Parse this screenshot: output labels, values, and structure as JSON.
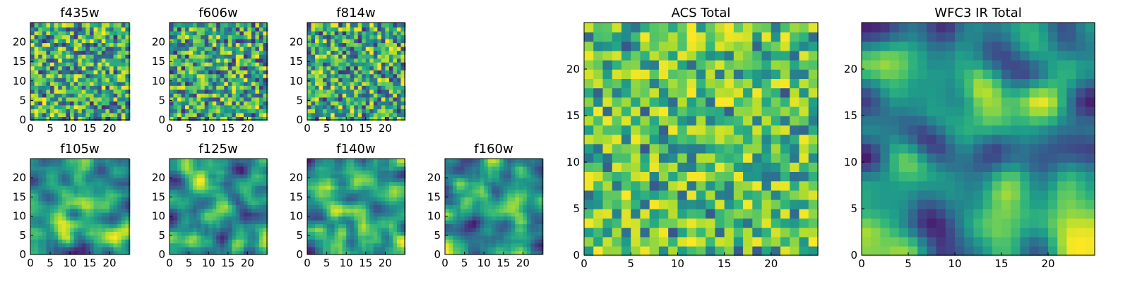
{
  "chart_data": [
    {
      "type": "heatmap",
      "title": "f435w",
      "grid_size": 25,
      "xlim": [
        0,
        25
      ],
      "ylim": [
        0,
        25
      ],
      "xticks": [
        0,
        5,
        10,
        15,
        20
      ],
      "yticks": [
        0,
        5,
        10,
        15,
        20
      ],
      "colormap": "viridis",
      "grid": false,
      "pattern": "noise",
      "seed": 1
    },
    {
      "type": "heatmap",
      "title": "f606w",
      "grid_size": 25,
      "xlim": [
        0,
        25
      ],
      "ylim": [
        0,
        25
      ],
      "xticks": [
        0,
        5,
        10,
        15,
        20
      ],
      "yticks": [
        0,
        5,
        10,
        15,
        20
      ],
      "colormap": "viridis",
      "grid": false,
      "pattern": "noise",
      "seed": 2
    },
    {
      "type": "heatmap",
      "title": "f814w",
      "grid_size": 25,
      "xlim": [
        0,
        25
      ],
      "ylim": [
        0,
        25
      ],
      "xticks": [
        0,
        5,
        10,
        15,
        20
      ],
      "yticks": [
        0,
        5,
        10,
        15,
        20
      ],
      "colormap": "viridis",
      "grid": false,
      "pattern": "noise",
      "seed": 3
    },
    {
      "type": "heatmap",
      "title": "f105w",
      "grid_size": 25,
      "xlim": [
        0,
        25
      ],
      "ylim": [
        0,
        25
      ],
      "xticks": [
        0,
        5,
        10,
        15,
        20
      ],
      "yticks": [
        0,
        5,
        10,
        15,
        20
      ],
      "colormap": "viridis",
      "grid": false,
      "pattern": "smooth",
      "seed": 4
    },
    {
      "type": "heatmap",
      "title": "f125w",
      "grid_size": 25,
      "xlim": [
        0,
        25
      ],
      "ylim": [
        0,
        25
      ],
      "xticks": [
        0,
        5,
        10,
        15,
        20
      ],
      "yticks": [
        0,
        5,
        10,
        15,
        20
      ],
      "colormap": "viridis",
      "grid": false,
      "pattern": "smooth",
      "seed": 5
    },
    {
      "type": "heatmap",
      "title": "f140w",
      "grid_size": 25,
      "xlim": [
        0,
        25
      ],
      "ylim": [
        0,
        25
      ],
      "xticks": [
        0,
        5,
        10,
        15,
        20
      ],
      "yticks": [
        0,
        5,
        10,
        15,
        20
      ],
      "colormap": "viridis",
      "grid": false,
      "pattern": "smooth",
      "seed": 6
    },
    {
      "type": "heatmap",
      "title": "f160w",
      "grid_size": 25,
      "xlim": [
        0,
        25
      ],
      "ylim": [
        0,
        25
      ],
      "xticks": [
        0,
        5,
        10,
        15,
        20
      ],
      "yticks": [
        0,
        5,
        10,
        15,
        20
      ],
      "colormap": "viridis",
      "grid": false,
      "pattern": "smooth",
      "seed": 7
    },
    {
      "type": "heatmap",
      "title": "ACS Total",
      "grid_size": 25,
      "xlim": [
        0,
        25
      ],
      "ylim": [
        0,
        25
      ],
      "xticks": [
        0,
        5,
        10,
        15,
        20
      ],
      "yticks": [
        0,
        5,
        10,
        15,
        20
      ],
      "colormap": "viridis",
      "grid": false,
      "pattern": "noise-bright",
      "seed": 8
    },
    {
      "type": "heatmap",
      "title": "WFC3 IR Total",
      "grid_size": 25,
      "xlim": [
        0,
        25
      ],
      "ylim": [
        0,
        25
      ],
      "xticks": [
        0,
        5,
        10,
        15,
        20
      ],
      "yticks": [
        0,
        5,
        10,
        15,
        20
      ],
      "colormap": "viridis",
      "grid": false,
      "pattern": "smooth-strong",
      "seed": 9
    }
  ]
}
